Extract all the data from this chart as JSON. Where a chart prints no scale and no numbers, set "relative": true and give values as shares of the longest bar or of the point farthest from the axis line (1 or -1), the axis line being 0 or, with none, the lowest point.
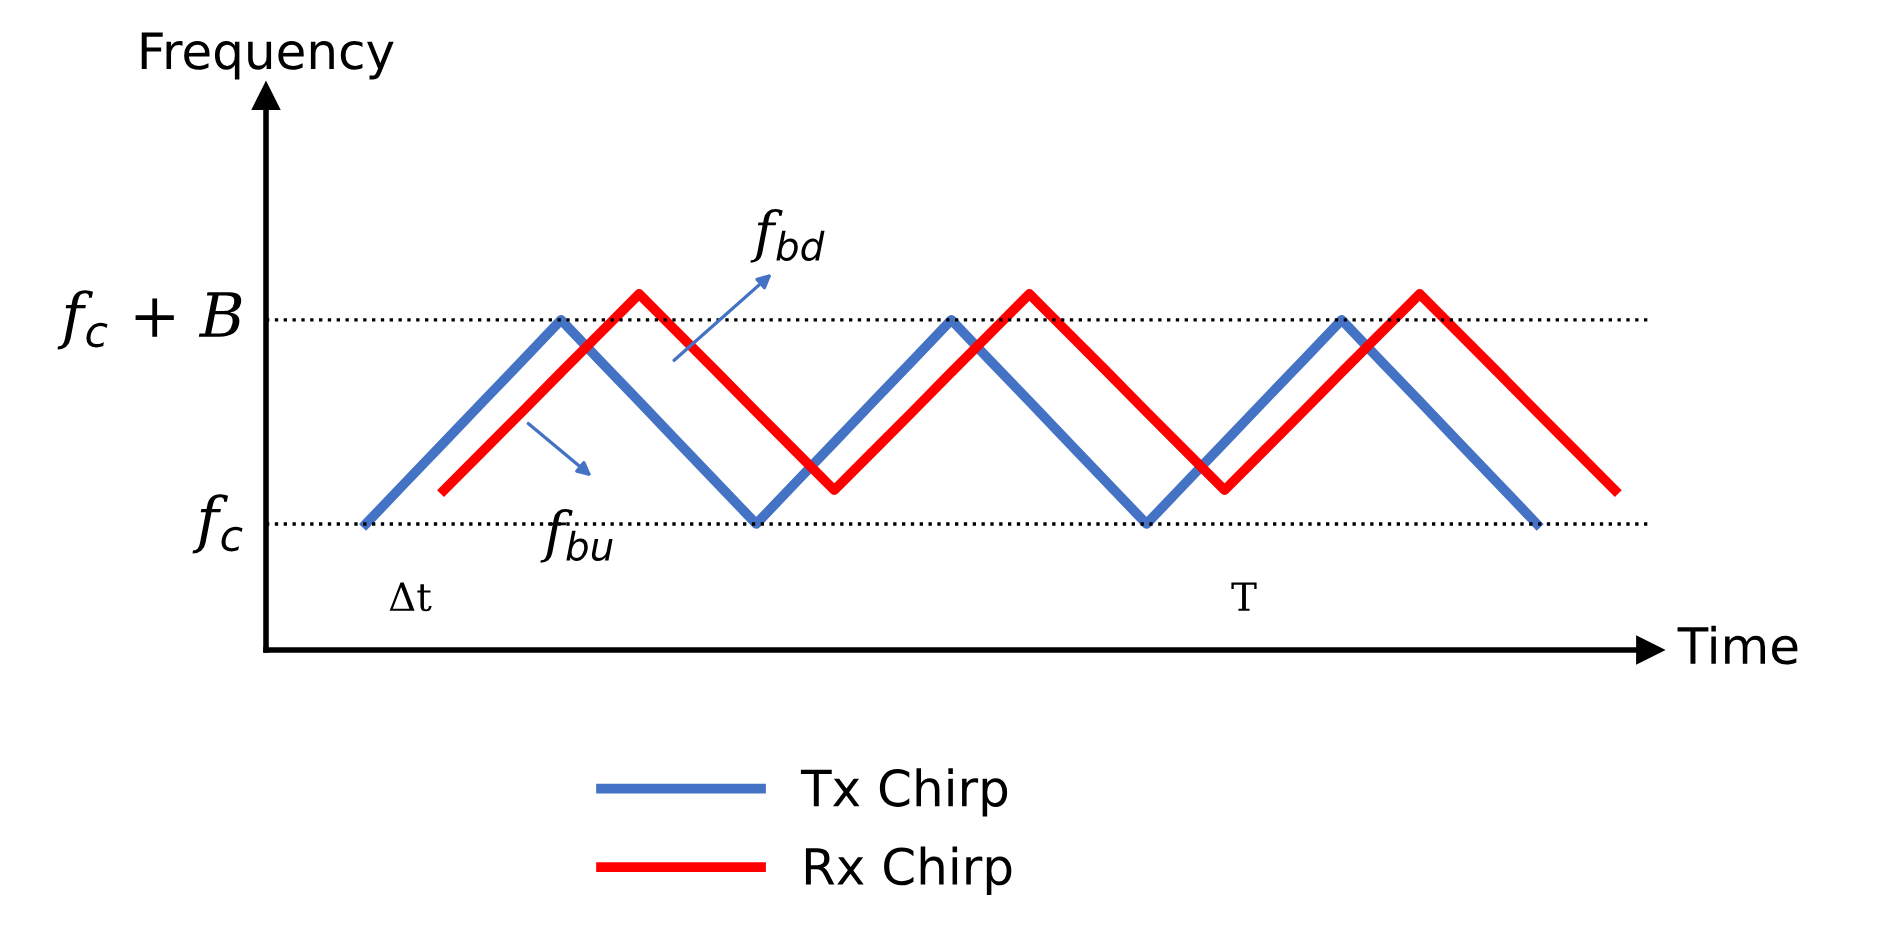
{
  "chart_data": {
    "type": "line",
    "relative": true,
    "xlabel": "Time",
    "ylabel": "Frequency",
    "categories": [
      null,
      null,
      null,
      null,
      null,
      null,
      null,
      null,
      null,
      null,
      null,
      null,
      null,
      null,
      null,
      null,
      null,
      null,
      null,
      null,
      null,
      null,
      null,
      null,
      null,
      null,
      null,
      null,
      null,
      null,
      null,
      null,
      null
    ],
    "series": [
      {
        "name": "Tx Chirp",
        "color": "#4472c4",
        "values": [
          0.354,
          0.469,
          0.583,
          0.698,
          0.812,
          0.927,
          0.812,
          0.698,
          0.583,
          0.469,
          0.354,
          0.469,
          0.583,
          0.698,
          0.812,
          0.927,
          0.812,
          0.698,
          0.583,
          0.469,
          0.354,
          0.469,
          0.583,
          0.698,
          0.812,
          0.927,
          0.812,
          0.698,
          0.583,
          0.469,
          0.354,
          null,
          null
        ]
      },
      {
        "name": "Rx Chirp",
        "color": "#ff0000",
        "values": [
          null,
          null,
          0.449,
          0.559,
          0.669,
          0.78,
          0.89,
          1.0,
          0.89,
          0.78,
          0.669,
          0.559,
          0.449,
          0.559,
          0.669,
          0.78,
          0.89,
          1.0,
          0.89,
          0.78,
          0.669,
          0.559,
          0.449,
          0.559,
          0.669,
          0.78,
          0.89,
          1.0,
          0.89,
          0.78,
          0.669,
          0.559,
          0.449
        ]
      }
    ],
    "ref_lines": [
      {
        "axis": "y",
        "value": 0.354,
        "label": "f$_{c}$",
        "line_style": "dotted",
        "color": "#000000"
      },
      {
        "axis": "y",
        "value": 0.927,
        "label": "f$_{c}$ + B",
        "line_style": "dotted",
        "color": "#000000"
      }
    ],
    "annotations": [
      "f$_{bd}$",
      "f$_{bu}$",
      "Δt",
      "T"
    ],
    "legend": "bottom",
    "grid": false,
    "marker": "none",
    "line_style": "solid"
  }
}
